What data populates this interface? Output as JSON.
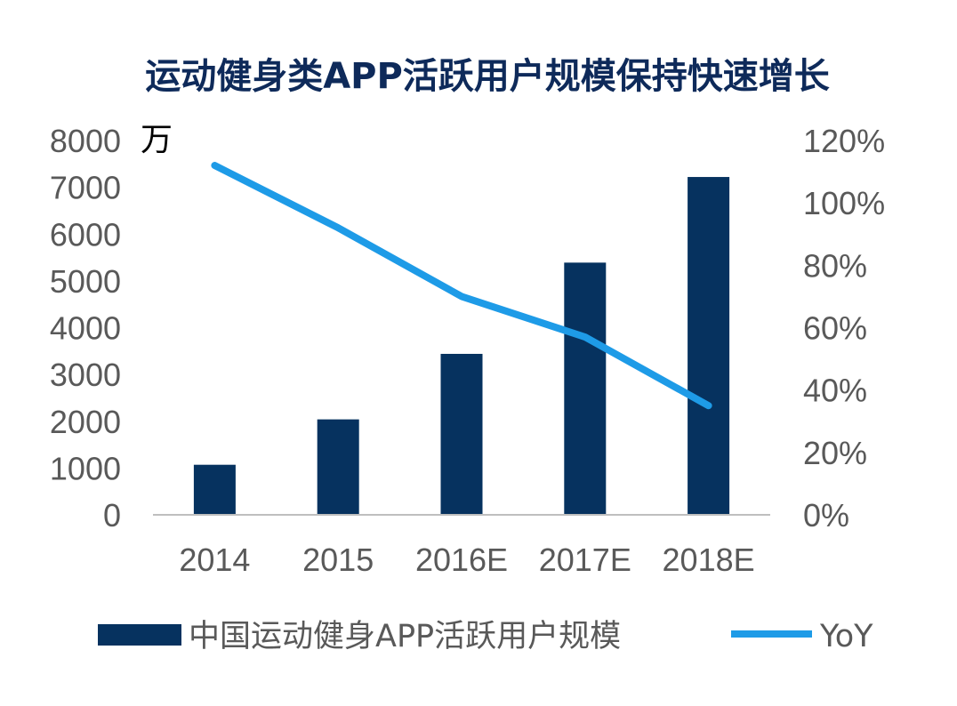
{
  "chart_data": {
    "type": "bar",
    "title": "运动健身类APP活跃用户规模保持快速增长",
    "y_unit": "万",
    "categories": [
      "2014",
      "2015",
      "2016E",
      "2017E",
      "2018E"
    ],
    "y_ticks": [
      "0",
      "1000",
      "2000",
      "3000",
      "4000",
      "5000",
      "6000",
      "7000",
      "8000"
    ],
    "y2_ticks": [
      "0%",
      "20%",
      "40%",
      "60%",
      "80%",
      "100%",
      "120%"
    ],
    "ylim": [
      0,
      8000
    ],
    "y2lim": [
      0,
      1.2
    ],
    "series": [
      {
        "name": "中国运动健身APP活跃用户规模",
        "type": "bar",
        "axis": "left",
        "values": [
          1070,
          2040,
          3440,
          5390,
          7220
        ]
      },
      {
        "name": "YoY",
        "type": "line",
        "axis": "right",
        "values": [
          1.12,
          0.92,
          0.7,
          0.57,
          0.35
        ]
      }
    ],
    "colors": {
      "bar": "#06325f",
      "line": "#1e9be7",
      "axis": "#bfbfbf",
      "tick": "#595959",
      "title": "#0e2a5a"
    },
    "legend_position": "bottom",
    "grid": false
  }
}
